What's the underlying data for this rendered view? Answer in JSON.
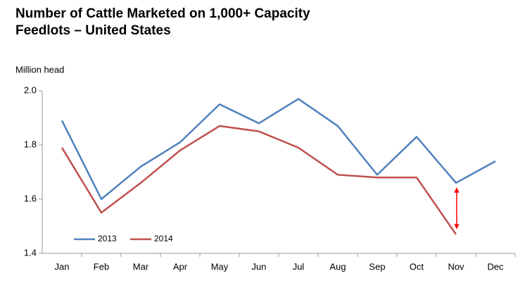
{
  "chart_data": {
    "type": "line",
    "title": "Number of Cattle Marketed on 1,000+ Capacity Feedlots – United States",
    "y_label": "Million head",
    "categories": [
      "Jan",
      "Feb",
      "Mar",
      "Apr",
      "May",
      "Jun",
      "Jul",
      "Aug",
      "Sep",
      "Oct",
      "Nov",
      "Dec"
    ],
    "series": [
      {
        "name": "2013",
        "color": "#4f81bd",
        "values": [
          1.89,
          1.6,
          1.72,
          1.81,
          1.95,
          1.88,
          1.97,
          1.87,
          1.69,
          1.83,
          1.66,
          1.74
        ]
      },
      {
        "name": "2014",
        "color": "#c0504d",
        "values": [
          1.79,
          1.55,
          1.66,
          1.78,
          1.87,
          1.85,
          1.79,
          1.69,
          1.68,
          1.68,
          1.47,
          null
        ]
      }
    ],
    "ylim": [
      1.4,
      2.0
    ],
    "yticks": [
      {
        "value": 1.4,
        "label": "1.4"
      },
      {
        "value": 1.6,
        "label": "1.6"
      },
      {
        "value": 1.8,
        "label": "1.8"
      },
      {
        "value": 2.0,
        "label": "2.0"
      }
    ],
    "grid": false,
    "legend": "lower-left"
  }
}
